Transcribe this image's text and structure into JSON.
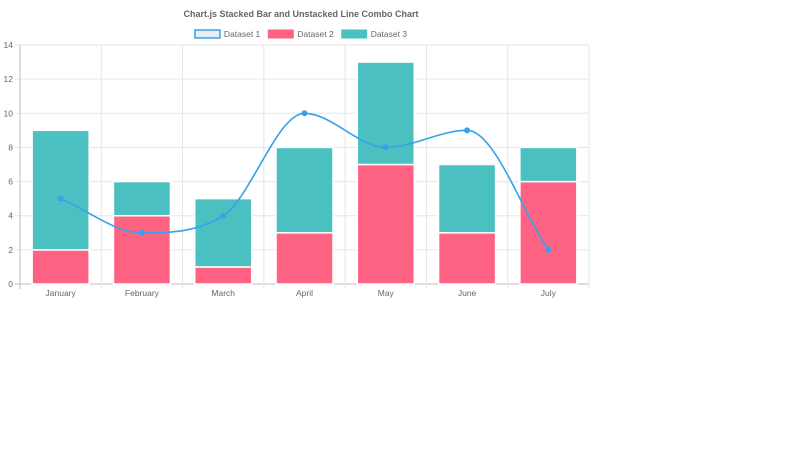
{
  "chart_data": {
    "type": "bar",
    "title": "Chart.js Stacked Bar and Unstacked Line Combo Chart",
    "categories": [
      "January",
      "February",
      "March",
      "April",
      "May",
      "June",
      "July"
    ],
    "stacked_bars": true,
    "ylim": [
      0,
      14
    ],
    "yticks": [
      0,
      2,
      4,
      6,
      8,
      10,
      12,
      14
    ],
    "grid": true,
    "legend_position": "top",
    "series": [
      {
        "name": "Dataset 1",
        "type": "line",
        "smooth": true,
        "values": [
          5,
          3,
          4,
          10,
          8,
          9,
          2
        ],
        "color": "#36a2eb",
        "fill": "#e6eef3"
      },
      {
        "name": "Dataset 2",
        "type": "bar",
        "values": [
          2,
          4,
          1,
          3,
          7,
          3,
          6
        ],
        "color": "#ff6384"
      },
      {
        "name": "Dataset 3",
        "type": "bar",
        "values": [
          7,
          2,
          4,
          5,
          6,
          4,
          2
        ],
        "color": "#4bc0c0"
      }
    ]
  }
}
